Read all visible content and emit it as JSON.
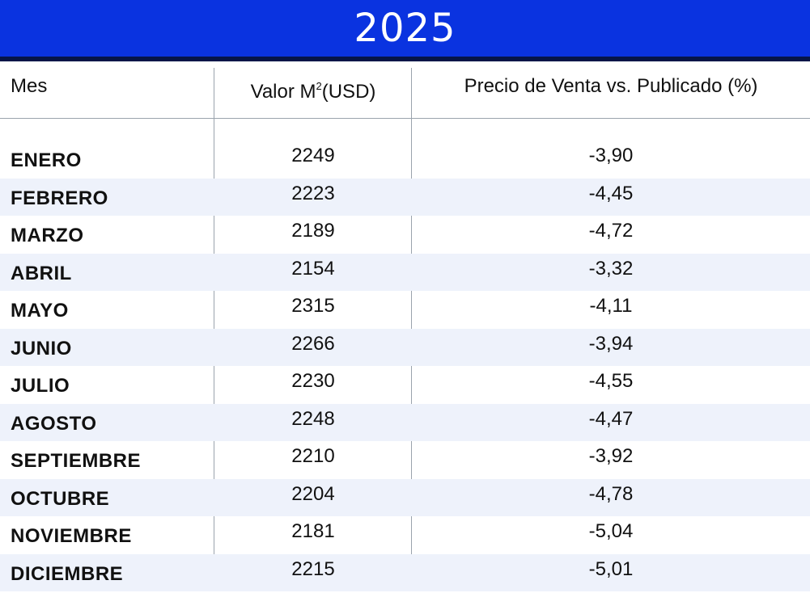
{
  "title": "2025",
  "headers": {
    "mes": "Mes",
    "valor": "Valor M",
    "valor_sup": "2",
    "valor_unit": "(USD)",
    "precio": "Precio de Venta vs. Publicado (%)"
  },
  "rows": [
    {
      "mes": "ENERO",
      "valor": "2249",
      "pct": "-3,90"
    },
    {
      "mes": "FEBRERO",
      "valor": "2223",
      "pct": "-4,45"
    },
    {
      "mes": "MARZO",
      "valor": "2189",
      "pct": "-4,72"
    },
    {
      "mes": "ABRIL",
      "valor": "2154",
      "pct": "-3,32"
    },
    {
      "mes": "MAYO",
      "valor": "2315",
      "pct": "-4,11"
    },
    {
      "mes": "JUNIO",
      "valor": "2266",
      "pct": "-3,94"
    },
    {
      "mes": "JULIO",
      "valor": "2230",
      "pct": "-4,55"
    },
    {
      "mes": "AGOSTO",
      "valor": "2248",
      "pct": "-4,47"
    },
    {
      "mes": "SEPTIEMBRE",
      "valor": "2210",
      "pct": "-3,92"
    },
    {
      "mes": "OCTUBRE",
      "valor": "2204",
      "pct": "-4,78"
    },
    {
      "mes": "NOVIEMBRE",
      "valor": "2181",
      "pct": "-5,04"
    },
    {
      "mes": "DICIEMBRE",
      "valor": "2215",
      "pct": "-5,01"
    }
  ],
  "colors": {
    "banner": "#0a33e0",
    "banner_rule": "#061548",
    "row_shade": "#eef2fb",
    "grid": "#9aa3ad"
  }
}
